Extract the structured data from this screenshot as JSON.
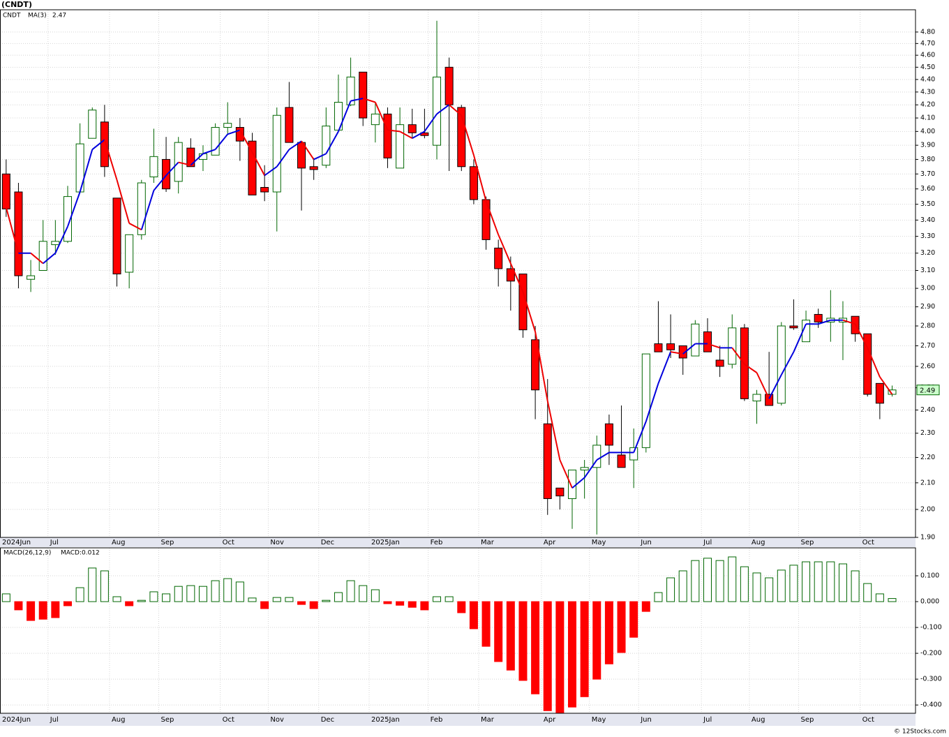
{
  "chart_data": [
    {
      "type": "candlestick",
      "title": "(CNDT)",
      "name": "CNDT",
      "open": [
        3.7,
        3.58,
        3.05,
        3.1,
        3.25,
        3.27,
        3.58,
        3.95,
        4.07,
        3.54,
        3.09,
        3.31,
        3.68,
        3.8,
        3.65,
        3.88,
        3.8,
        3.83,
        4.03,
        4.03,
        3.93,
        3.61,
        3.58,
        4.18,
        3.92,
        3.75,
        3.76,
        4.01,
        4.2,
        4.46,
        4.05,
        4.13,
        3.74,
        4.05,
        3.99,
        3.9,
        4.5,
        4.18,
        3.75,
        3.53,
        3.23,
        3.11,
        3.08,
        2.73,
        2.34,
        2.08,
        2.04,
        2.15,
        2.16,
        2.34,
        2.21,
        2.19,
        2.24,
        2.71,
        2.71,
        2.7,
        2.65,
        2.77,
        2.63,
        2.61,
        2.79,
        2.44,
        2.47,
        2.43,
        2.8,
        2.72,
        2.86,
        2.82,
        2.82,
        2.85,
        2.76,
        2.52,
        2.47
      ],
      "high": [
        3.8,
        3.64,
        3.16,
        3.4,
        3.4,
        3.62,
        4.06,
        4.18,
        4.2,
        3.54,
        3.31,
        3.66,
        4.02,
        3.96,
        3.96,
        3.95,
        3.9,
        4.06,
        4.22,
        4.1,
        3.99,
        3.76,
        4.18,
        4.38,
        3.92,
        3.81,
        4.18,
        4.44,
        4.58,
        4.46,
        4.22,
        4.18,
        4.18,
        4.17,
        4.17,
        4.9,
        4.58,
        4.2,
        3.8,
        3.55,
        3.28,
        3.18,
        3.08,
        2.8,
        2.54,
        2.08,
        2.15,
        2.19,
        2.29,
        2.38,
        2.42,
        2.32,
        2.66,
        2.93,
        2.86,
        2.7,
        2.83,
        2.84,
        2.7,
        2.86,
        2.81,
        2.49,
        2.67,
        2.82,
        2.94,
        2.88,
        2.89,
        2.99,
        2.93,
        2.85,
        2.76,
        2.52,
        2.51
      ],
      "low": [
        3.42,
        3.0,
        2.98,
        3.1,
        3.19,
        3.26,
        3.58,
        3.95,
        3.68,
        3.01,
        3.0,
        3.28,
        3.64,
        3.58,
        3.57,
        3.75,
        3.72,
        3.83,
        3.98,
        3.79,
        3.56,
        3.52,
        3.33,
        3.92,
        3.46,
        3.66,
        3.74,
        4.01,
        4.19,
        4.04,
        3.92,
        3.74,
        3.74,
        3.95,
        3.95,
        3.8,
        3.72,
        3.72,
        3.5,
        3.22,
        3.01,
        2.88,
        2.74,
        2.36,
        1.98,
        2.0,
        1.93,
        2.04,
        1.91,
        2.17,
        2.16,
        2.08,
        2.22,
        2.67,
        2.64,
        2.56,
        2.65,
        2.67,
        2.55,
        2.59,
        2.44,
        2.34,
        2.42,
        2.42,
        2.78,
        2.72,
        2.79,
        2.72,
        2.63,
        2.72,
        2.46,
        2.36,
        2.46
      ],
      "close": [
        3.47,
        3.07,
        3.07,
        3.27,
        3.27,
        3.55,
        3.91,
        4.16,
        3.75,
        3.08,
        3.31,
        3.64,
        3.82,
        3.6,
        3.92,
        3.75,
        3.84,
        4.03,
        4.06,
        3.93,
        3.56,
        3.58,
        4.12,
        3.92,
        3.74,
        3.73,
        4.04,
        4.22,
        4.42,
        4.1,
        4.13,
        3.81,
        4.05,
        3.99,
        3.97,
        4.42,
        4.2,
        3.75,
        3.53,
        3.28,
        3.11,
        3.04,
        2.78,
        2.49,
        2.04,
        2.05,
        2.15,
        2.16,
        2.25,
        2.25,
        2.16,
        2.24,
        2.66,
        2.67,
        2.68,
        2.64,
        2.81,
        2.67,
        2.6,
        2.79,
        2.45,
        2.47,
        2.42,
        2.8,
        2.79,
        2.83,
        2.82,
        2.84,
        2.84,
        2.76,
        2.47,
        2.43,
        2.49
      ],
      "up_color": "#006600",
      "down_color": "#ff0000",
      "ma": {
        "name": "MA(3)",
        "value_label": "2.47",
        "up_color": "#0000dd",
        "down_color": "#ee0000",
        "values": [
          3.48,
          3.2,
          3.2,
          3.14,
          3.2,
          3.36,
          3.58,
          3.87,
          3.94,
          3.66,
          3.38,
          3.34,
          3.59,
          3.69,
          3.78,
          3.76,
          3.84,
          3.87,
          3.98,
          4.01,
          3.85,
          3.69,
          3.75,
          3.87,
          3.93,
          3.8,
          3.84,
          4.0,
          4.23,
          4.25,
          4.22,
          4.01,
          4.0,
          3.95,
          4.0,
          4.13,
          4.2,
          4.12,
          3.83,
          3.52,
          3.31,
          3.14,
          2.98,
          2.77,
          2.44,
          2.19,
          2.08,
          2.12,
          2.19,
          2.22,
          2.22,
          2.22,
          2.35,
          2.52,
          2.67,
          2.66,
          2.71,
          2.71,
          2.69,
          2.69,
          2.61,
          2.57,
          2.45,
          2.56,
          2.67,
          2.81,
          2.81,
          2.83,
          2.83,
          2.81,
          2.69,
          2.55,
          2.47
        ]
      },
      "last_label": "2.49",
      "log_scale": true,
      "grid": true,
      "ylim": [
        1.9,
        5.0
      ],
      "yticks": [
        {
          "value": 1.9,
          "label": "1.90"
        },
        {
          "value": 2.0,
          "label": "2.00"
        },
        {
          "value": 2.1,
          "label": "2.10"
        },
        {
          "value": 2.2,
          "label": "2.20"
        },
        {
          "value": 2.3,
          "label": "2.30"
        },
        {
          "value": 2.4,
          "label": "2.40"
        },
        {
          "value": 2.5,
          "label": "2.50"
        },
        {
          "value": 2.6,
          "label": "2.60"
        },
        {
          "value": 2.7,
          "label": "2.70"
        },
        {
          "value": 2.8,
          "label": "2.80"
        },
        {
          "value": 2.9,
          "label": "2.90"
        },
        {
          "value": 3.0,
          "label": "3.00"
        },
        {
          "value": 3.1,
          "label": "3.10"
        },
        {
          "value": 3.2,
          "label": "3.20"
        },
        {
          "value": 3.3,
          "label": "3.30"
        },
        {
          "value": 3.4,
          "label": "3.40"
        },
        {
          "value": 3.5,
          "label": "3.50"
        },
        {
          "value": 3.6,
          "label": "3.60"
        },
        {
          "value": 3.7,
          "label": "3.70"
        },
        {
          "value": 3.8,
          "label": "3.80"
        },
        {
          "value": 3.9,
          "label": "3.90"
        },
        {
          "value": 4.0,
          "label": "4.00"
        },
        {
          "value": 4.1,
          "label": "4.10"
        },
        {
          "value": 4.2,
          "label": "4.20"
        },
        {
          "value": 4.3,
          "label": "4.30"
        },
        {
          "value": 4.4,
          "label": "4.40"
        },
        {
          "value": 4.5,
          "label": "4.50"
        },
        {
          "value": 4.6,
          "label": "4.60"
        },
        {
          "value": 4.7,
          "label": "4.70"
        },
        {
          "value": 4.8,
          "label": "4.80"
        }
      ],
      "xlim": [
        -0.5,
        73.9
      ],
      "xticks": [
        {
          "value": -0.5,
          "label": "2024Jun"
        },
        {
          "value": 3.4,
          "label": "Jul"
        },
        {
          "value": 8.4,
          "label": "Aug"
        },
        {
          "value": 12.4,
          "label": "Sep"
        },
        {
          "value": 17.4,
          "label": "Oct"
        },
        {
          "value": 21.3,
          "label": "Nov"
        },
        {
          "value": 25.4,
          "label": "Dec"
        },
        {
          "value": 29.5,
          "label": "2025Jan"
        },
        {
          "value": 34.3,
          "label": "Feb"
        },
        {
          "value": 38.4,
          "label": "Mar"
        },
        {
          "value": 43.5,
          "label": "Apr"
        },
        {
          "value": 47.4,
          "label": "May"
        },
        {
          "value": 51.4,
          "label": "Jun"
        },
        {
          "value": 56.5,
          "label": "Jul"
        },
        {
          "value": 60.4,
          "label": "Aug"
        },
        {
          "value": 64.4,
          "label": "Sep"
        },
        {
          "value": 69.4,
          "label": "Oct"
        }
      ]
    },
    {
      "type": "bar",
      "title": "MACD(26,12,9)",
      "value_text": "MACD:0.012",
      "values": [
        0.03,
        -0.032,
        -0.073,
        -0.068,
        -0.062,
        -0.016,
        0.054,
        0.13,
        0.119,
        0.019,
        -0.016,
        0.005,
        0.038,
        0.03,
        0.059,
        0.062,
        0.059,
        0.081,
        0.089,
        0.076,
        0.014,
        -0.027,
        0.016,
        0.016,
        -0.011,
        -0.027,
        0.005,
        0.035,
        0.081,
        0.062,
        0.046,
        -0.008,
        -0.014,
        -0.022,
        -0.032,
        0.019,
        0.019,
        -0.043,
        -0.105,
        -0.173,
        -0.232,
        -0.265,
        -0.305,
        -0.357,
        -0.422,
        -0.44,
        -0.408,
        -0.368,
        -0.3,
        -0.241,
        -0.197,
        -0.138,
        -0.038,
        0.035,
        0.092,
        0.119,
        0.159,
        0.168,
        0.159,
        0.173,
        0.135,
        0.111,
        0.092,
        0.122,
        0.141,
        0.154,
        0.154,
        0.154,
        0.146,
        0.119,
        0.07,
        0.03,
        0.012
      ],
      "pos_color": "#006600",
      "neg_color": "#ff0000",
      "grid": true,
      "ylim": [
        -0.432,
        0.208
      ],
      "yticks": [
        {
          "value": 0.1,
          "label": "0.100"
        },
        {
          "value": 0,
          "label": "0.000"
        },
        {
          "value": -0.1,
          "label": "-0.100"
        },
        {
          "value": -0.2,
          "label": "-0.200"
        },
        {
          "value": -0.3,
          "label": "-0.300"
        },
        {
          "value": -0.4,
          "label": "-0.400"
        }
      ],
      "xlim": [
        -0.5,
        73.9
      ],
      "xticks": [
        {
          "value": -0.5,
          "label": "2024Jun"
        },
        {
          "value": 3.4,
          "label": "Jul"
        },
        {
          "value": 8.4,
          "label": "Aug"
        },
        {
          "value": 12.4,
          "label": "Sep"
        },
        {
          "value": 17.4,
          "label": "Oct"
        },
        {
          "value": 21.3,
          "label": "Nov"
        },
        {
          "value": 25.4,
          "label": "Dec"
        },
        {
          "value": 29.5,
          "label": "2025Jan"
        },
        {
          "value": 34.3,
          "label": "Feb"
        },
        {
          "value": 38.4,
          "label": "Mar"
        },
        {
          "value": 43.5,
          "label": "Apr"
        },
        {
          "value": 47.4,
          "label": "May"
        },
        {
          "value": 51.4,
          "label": "Jun"
        },
        {
          "value": 56.5,
          "label": "Jul"
        },
        {
          "value": 60.4,
          "label": "Aug"
        },
        {
          "value": 64.4,
          "label": "Sep"
        },
        {
          "value": 69.4,
          "label": "Oct"
        }
      ]
    }
  ],
  "watermark": "© 12Stocks.com"
}
